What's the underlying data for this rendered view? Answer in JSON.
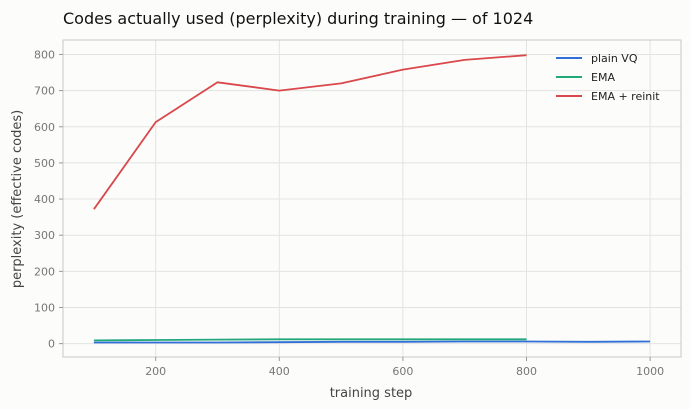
{
  "chart_data": {
    "type": "line",
    "title": "Codes actually used (perplexity) during training — of 1024",
    "xlabel": "training step",
    "ylabel": "perplexity (effective codes)",
    "xlim": [
      50,
      1050
    ],
    "ylim": [
      -37,
      840
    ],
    "xticks": [
      200,
      400,
      600,
      800,
      1000
    ],
    "yticks": [
      0,
      100,
      200,
      300,
      400,
      500,
      600,
      700,
      800
    ],
    "grid": true,
    "legend_position": "top-right",
    "series": [
      {
        "name": "plain VQ",
        "color": "#2f6fd6",
        "x": [
          100,
          200,
          300,
          400,
          500,
          600,
          700,
          800,
          900,
          1000
        ],
        "y": [
          3,
          3,
          3,
          4,
          5,
          5,
          6,
          6,
          5,
          6
        ]
      },
      {
        "name": "EMA",
        "color": "#22a87a",
        "x": [
          100,
          200,
          300,
          400,
          500,
          600,
          700,
          800
        ],
        "y": [
          9,
          10,
          11,
          12,
          12,
          12,
          12,
          12
        ]
      },
      {
        "name": "EMA + reinit",
        "color": "#d9484a",
        "x": [
          100,
          200,
          300,
          400,
          500,
          600,
          700,
          800
        ],
        "y": [
          372,
          613,
          723,
          700,
          720,
          758,
          785,
          798
        ]
      }
    ]
  }
}
